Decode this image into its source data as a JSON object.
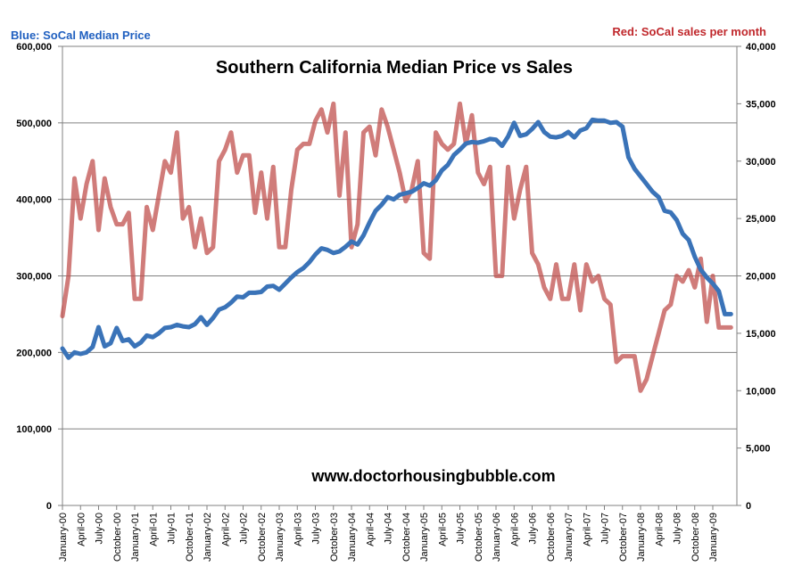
{
  "legend_left": "Blue:  SoCal Median Price",
  "legend_right": "Red:  SoCal sales per month",
  "chart_data": {
    "type": "line",
    "title": "Southern California Median Price vs Sales",
    "annotation": "www.doctorhousingbubble.com",
    "grid": true,
    "y_left": {
      "min": 0,
      "max": 600000,
      "ticks": [
        "0",
        "100,000",
        "200,000",
        "300,000",
        "400,000",
        "500,000",
        "600,000"
      ]
    },
    "y_right": {
      "min": 0,
      "max": 40000,
      "ticks": [
        "0",
        "5,000",
        "10,000",
        "15,000",
        "20,000",
        "25,000",
        "30,000",
        "35,000",
        "40,000"
      ]
    },
    "x_labels": [
      "January-00",
      "April-00",
      "July-00",
      "October-00",
      "January-01",
      "April-01",
      "July-01",
      "October-01",
      "January-02",
      "April-02",
      "July-02",
      "October-02",
      "January-03",
      "April-03",
      "July-03",
      "October-03",
      "January-04",
      "April-04",
      "July-04",
      "October-04",
      "January-05",
      "April-05",
      "July-05",
      "October-05",
      "January-06",
      "April-06",
      "July-06",
      "October-06",
      "January-07",
      "April-07",
      "July-07",
      "October-07",
      "January-08",
      "April-08",
      "July-08",
      "October-08",
      "January-09"
    ],
    "series": [
      {
        "name": "SoCal Median Price",
        "axis": "left",
        "color": "#3a73b8",
        "values": [
          205000,
          193000,
          200000,
          198000,
          200000,
          207000,
          233000,
          208000,
          212000,
          232000,
          215000,
          217000,
          208000,
          213000,
          222000,
          220000,
          225000,
          232000,
          233000,
          236000,
          234000,
          233000,
          237000,
          246000,
          236000,
          245000,
          256000,
          259000,
          265000,
          273000,
          272000,
          278000,
          278000,
          279000,
          286000,
          287000,
          282000,
          290000,
          298000,
          305000,
          310000,
          318000,
          328000,
          336000,
          334000,
          330000,
          332000,
          338000,
          345000,
          341000,
          353000,
          370000,
          385000,
          393000,
          403000,
          400000,
          406000,
          408000,
          410000,
          415000,
          421000,
          418000,
          425000,
          438000,
          445000,
          458000,
          465000,
          473000,
          475000,
          474000,
          476000,
          479000,
          478000,
          470000,
          482000,
          500000,
          483000,
          485000,
          492000,
          501000,
          488000,
          482000,
          481000,
          483000,
          488000,
          481000,
          490000,
          493000,
          504000,
          503000,
          503000,
          500000,
          501000,
          495000,
          455000,
          440000,
          430000,
          420000,
          410000,
          403000,
          385000,
          383000,
          373000,
          355000,
          347000,
          325000,
          308000,
          298000,
          290000,
          280000,
          250000,
          250000
        ],
        "x": [
          0,
          1,
          2,
          3,
          4,
          5,
          6,
          7,
          8,
          9,
          10,
          11,
          12,
          13,
          14,
          15,
          16,
          17,
          18,
          19,
          20,
          21,
          22,
          23,
          24,
          25,
          26,
          27,
          28,
          29,
          30,
          31,
          32,
          33,
          34,
          35,
          36,
          37,
          38,
          39,
          40,
          41,
          42,
          43,
          44,
          45,
          46,
          47,
          48,
          49,
          50,
          51,
          52,
          53,
          54,
          55,
          56,
          57,
          58,
          59,
          60,
          61,
          62,
          63,
          64,
          65,
          66,
          67,
          68,
          69,
          70,
          71,
          72,
          73,
          74,
          75,
          76,
          77,
          78,
          79,
          80,
          81,
          82,
          83,
          84,
          85,
          86,
          87,
          88,
          89,
          90,
          91,
          92,
          93,
          94,
          95,
          96,
          97,
          98,
          99,
          100,
          101,
          102,
          103,
          104,
          105,
          106,
          107,
          108,
          109,
          110,
          111
        ]
      },
      {
        "name": "SoCal sales per month",
        "axis": "right",
        "color": "#c0504d",
        "values": [
          16500,
          20000,
          28500,
          25000,
          28000,
          30000,
          24000,
          28500,
          26000,
          24500,
          24500,
          25500,
          18000,
          18000,
          26000,
          24000,
          27000,
          30000,
          29000,
          32500,
          25000,
          26000,
          22500,
          25000,
          22000,
          22500,
          30000,
          31000,
          32500,
          29000,
          30500,
          30500,
          25500,
          29000,
          25000,
          29500,
          22500,
          22500,
          27500,
          31000,
          31500,
          31500,
          33500,
          34500,
          32500,
          35000,
          27000,
          32500,
          22500,
          24500,
          32500,
          33000,
          30500,
          34500,
          33000,
          31000,
          29000,
          26500,
          27500,
          30000,
          22000,
          21500,
          32500,
          31500,
          31000,
          31500,
          35000,
          31500,
          34000,
          29000,
          28000,
          29500,
          20000,
          20000,
          29500,
          25000,
          27500,
          29500,
          22000,
          21000,
          19000,
          18000,
          21000,
          18000,
          18000,
          21000,
          17000,
          21000,
          19500,
          20000,
          18000,
          17500,
          12500,
          13000,
          13000,
          13000,
          10000,
          11000,
          13000,
          15000,
          17000,
          17500,
          20000,
          19500,
          20500,
          19000,
          21500,
          16000,
          20000,
          15500,
          15500,
          15500
        ],
        "x": [
          0,
          1,
          2,
          3,
          4,
          5,
          6,
          7,
          8,
          9,
          10,
          11,
          12,
          13,
          14,
          15,
          16,
          17,
          18,
          19,
          20,
          21,
          22,
          23,
          24,
          25,
          26,
          27,
          28,
          29,
          30,
          31,
          32,
          33,
          34,
          35,
          36,
          37,
          38,
          39,
          40,
          41,
          42,
          43,
          44,
          45,
          46,
          47,
          48,
          49,
          50,
          51,
          52,
          53,
          54,
          55,
          56,
          57,
          58,
          59,
          60,
          61,
          62,
          63,
          64,
          65,
          66,
          67,
          68,
          69,
          70,
          71,
          72,
          73,
          74,
          75,
          76,
          77,
          78,
          79,
          80,
          81,
          82,
          83,
          84,
          85,
          86,
          87,
          88,
          89,
          90,
          91,
          92,
          93,
          94,
          95,
          96,
          97,
          98,
          99,
          100,
          101,
          102,
          103,
          104,
          105,
          106,
          107,
          108,
          109,
          110,
          111
        ]
      }
    ]
  }
}
